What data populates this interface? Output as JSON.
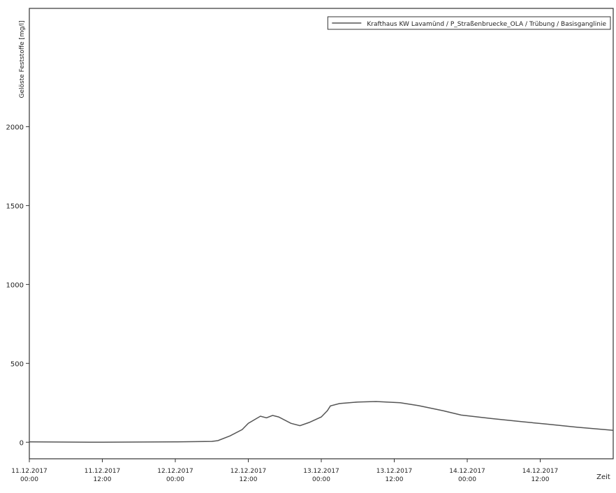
{
  "chart_data": {
    "type": "line",
    "y_label": "Gelöste Feststoffe [mg/l]",
    "x_label": "Zeit",
    "x": [
      "11.12.2017 00:00",
      "11.12.2017 12:00",
      "12.12.2017 00:00",
      "12.12.2017 06:00",
      "12.12.2017 07:00",
      "12.12.2017 09:00",
      "12.12.2017 11:00",
      "12.12.2017 12:00",
      "12.12.2017 14:00",
      "12.12.2017 15:00",
      "12.12.2017 16:00",
      "12.12.2017 17:00",
      "12.12.2017 19:00",
      "12.12.2017 20:30",
      "12.12.2017 22:00",
      "13.12.2017 00:00",
      "13.12.2017 01:00",
      "13.12.2017 01:30",
      "13.12.2017 03:00",
      "13.12.2017 06:00",
      "13.12.2017 09:00",
      "13.12.2017 13:00",
      "13.12.2017 16:00",
      "13.12.2017 20:00",
      "13.12.2017 23:00",
      "14.12.2017 04:00",
      "14.12.2017 09:00",
      "14.12.2017 13:00",
      "14.12.2017 18:00",
      "15.12.2017 00:00"
    ],
    "series": [
      {
        "name": "Krafthaus KW Lavamünd / P_Straßenbruecke_OLA / Trübung / Basisganglinie",
        "color": "#555555",
        "values": [
          2,
          0,
          2,
          5,
          10,
          40,
          80,
          120,
          165,
          155,
          170,
          160,
          120,
          105,
          125,
          160,
          200,
          230,
          245,
          255,
          258,
          250,
          232,
          200,
          172,
          150,
          130,
          115,
          95,
          75
        ]
      }
    ],
    "xlim": [
      "11.12.2017 00:00",
      "15.12.2017 00:00"
    ],
    "xticks": [
      "11.12.2017 00:00",
      "11.12.2017 12:00",
      "12.12.2017 00:00",
      "12.12.2017 12:00",
      "13.12.2017 00:00",
      "13.12.2017 12:00",
      "14.12.2017 00:00",
      "14.12.2017 12:00"
    ],
    "ylim": [
      -105,
      2750
    ],
    "yticks": [
      0,
      500,
      1000,
      1500,
      2000
    ],
    "grid": false,
    "legend": "top-right"
  }
}
